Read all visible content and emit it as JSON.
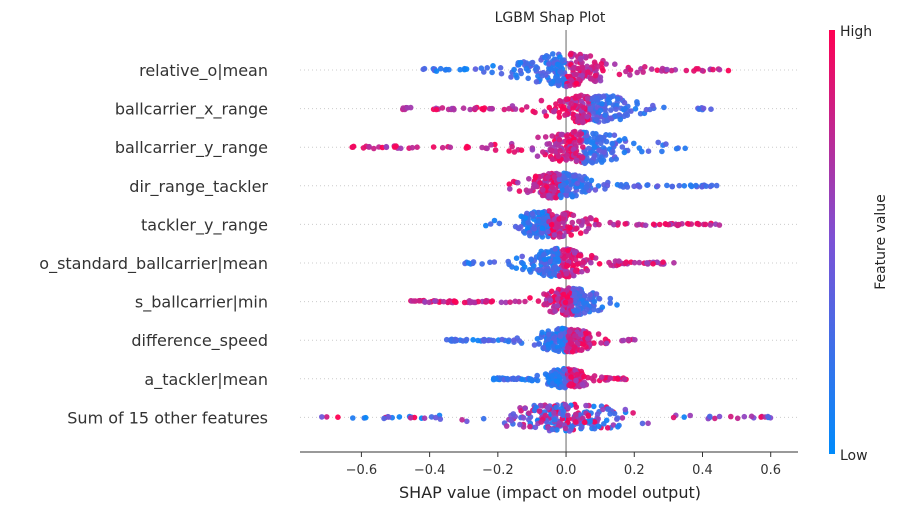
{
  "chart_data": {
    "type": "scatter",
    "subtype": "shap-beeswarm",
    "title": "LGBM Shap Plot",
    "xlabel": "SHAP value (impact on model output)",
    "xlim": [
      -0.78,
      0.68
    ],
    "xticks": [
      -0.6,
      -0.4,
      -0.2,
      0.0,
      0.2,
      0.4,
      0.6
    ],
    "xtick_labels": [
      "−0.6",
      "−0.4",
      "−0.2",
      "0.0",
      "0.2",
      "0.4",
      "0.6"
    ],
    "zero_line": 0,
    "colorbar": {
      "label": "Feature value",
      "high_label": "High",
      "low_label": "Low",
      "high_color": "#ff0052",
      "low_color": "#008bfb"
    },
    "features": [
      {
        "name": "relative_o|mean",
        "min": -0.42,
        "max": 0.48,
        "center": 0.0,
        "low_side": "negative",
        "width": 1.0
      },
      {
        "name": "ballcarrier_x_range",
        "min": -0.48,
        "max": 0.43,
        "center": 0.07,
        "low_side": "positive",
        "width": 0.85
      },
      {
        "name": "ballcarrier_y_range",
        "min": -0.63,
        "max": 0.35,
        "center": 0.05,
        "low_side": "positive",
        "width": 0.95
      },
      {
        "name": "dir_range_tackler",
        "min": -0.17,
        "max": 0.47,
        "center": -0.02,
        "low_side": "positive",
        "width": 0.75
      },
      {
        "name": "tackler_y_range",
        "min": -0.26,
        "max": 0.45,
        "center": -0.05,
        "low_side": "negative",
        "width": 0.8
      },
      {
        "name": "o_standard_ballcarrier|mean",
        "min": -0.3,
        "max": 0.32,
        "center": -0.02,
        "low_side": "negative",
        "width": 0.85
      },
      {
        "name": "s_ballcarrier|min",
        "min": -0.48,
        "max": 0.15,
        "center": 0.02,
        "low_side": "positive",
        "width": 0.8
      },
      {
        "name": "difference_speed",
        "min": -0.35,
        "max": 0.23,
        "center": 0.0,
        "low_side": "negative",
        "width": 0.7
      },
      {
        "name": "a_tackler|mean",
        "min": -0.22,
        "max": 0.18,
        "center": 0.0,
        "low_side": "negative",
        "width": 0.6
      },
      {
        "name": "Sum of 15 other features",
        "min": -0.72,
        "max": 0.6,
        "center": 0.0,
        "low_side": "mixed",
        "width": 0.8
      }
    ]
  }
}
